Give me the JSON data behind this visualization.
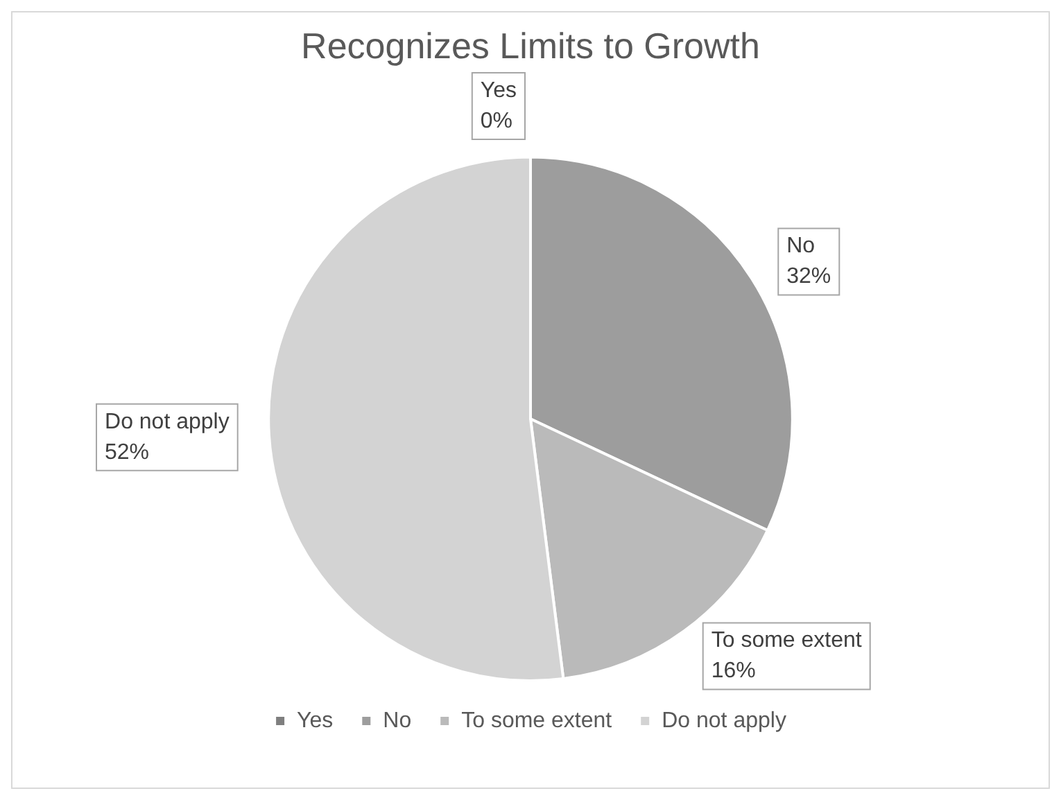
{
  "chart_data": {
    "type": "pie",
    "title": "Recognizes Limits to Growth",
    "categories": [
      "Yes",
      "No",
      "To some extent",
      "Do not apply"
    ],
    "values": [
      0,
      32,
      16,
      52
    ],
    "colors": [
      "#7f7f7f",
      "#9d9d9d",
      "#bababa",
      "#d3d3d3"
    ],
    "value_labels": [
      "0%",
      "32%",
      "16%",
      "52%"
    ],
    "legend": "bottom"
  }
}
